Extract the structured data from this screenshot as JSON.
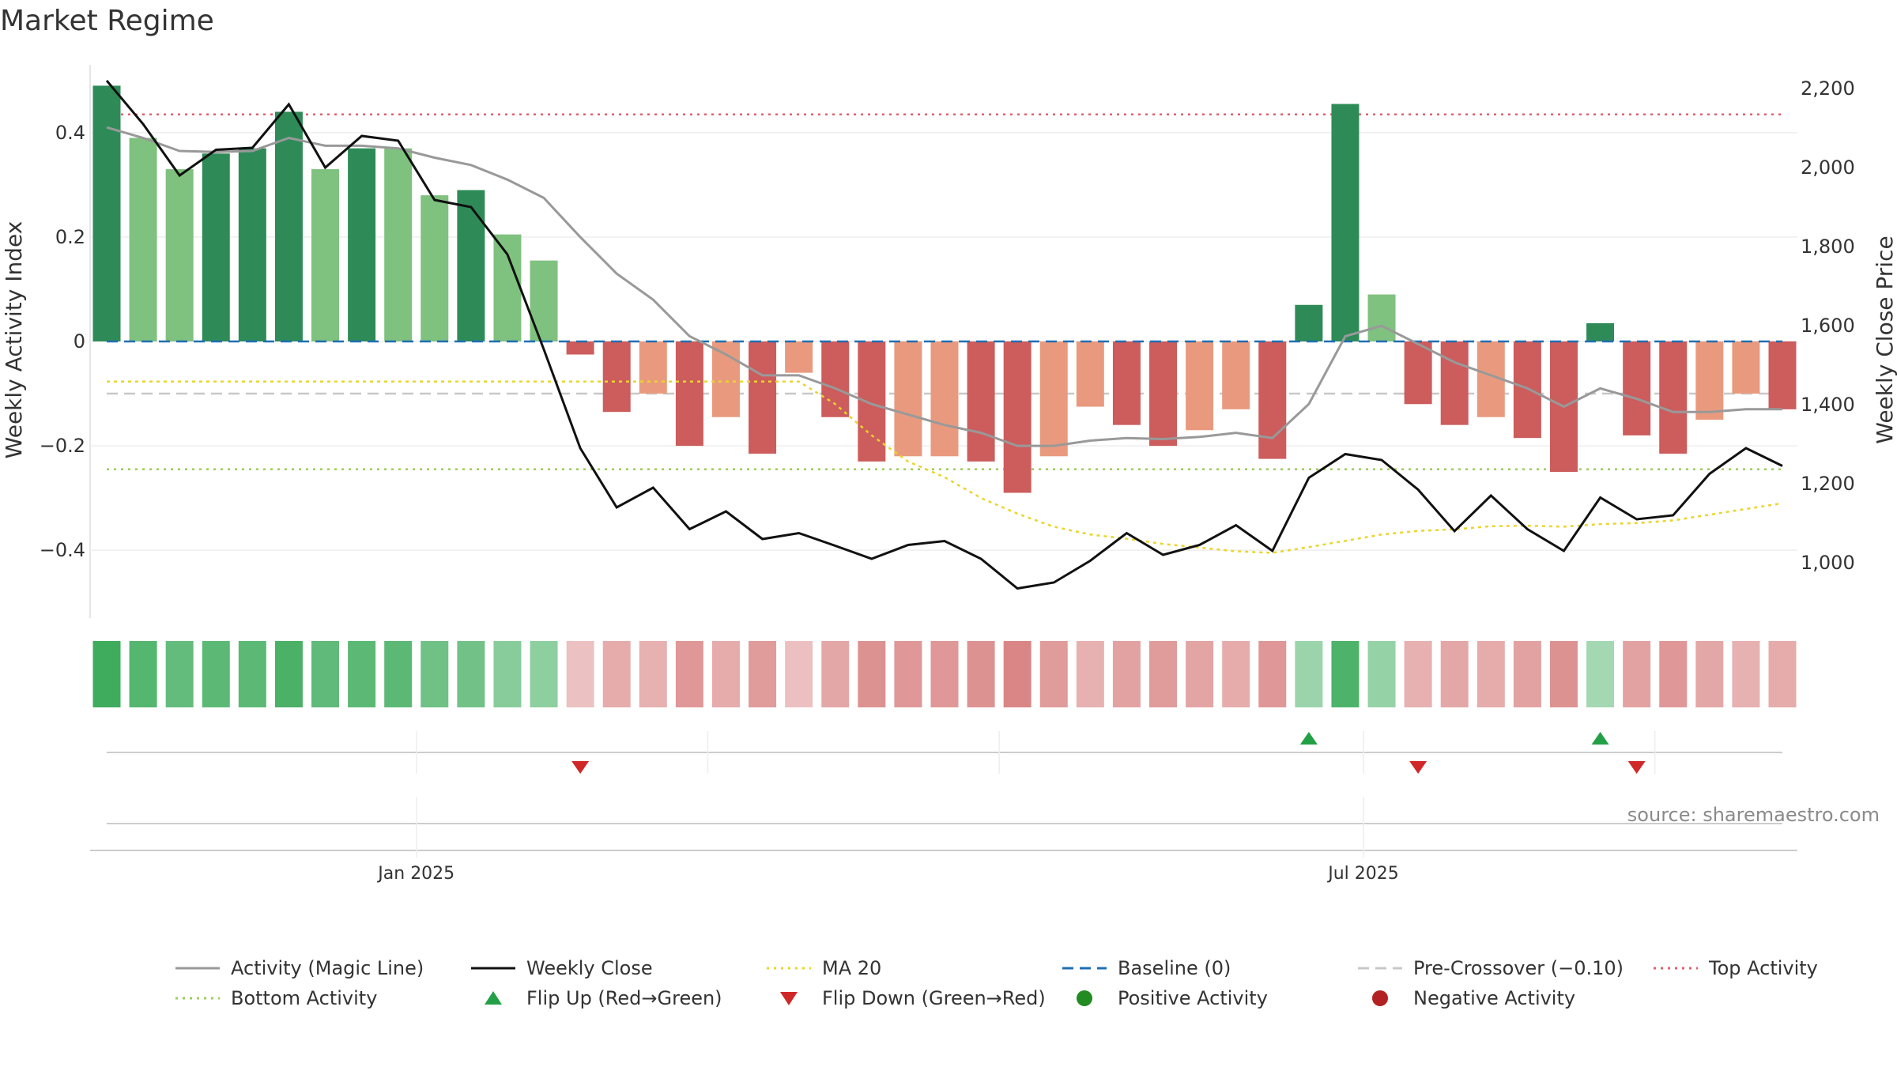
{
  "chart_data": {
    "type": "bar",
    "title": "Market Regime",
    "source": "source: sharemaestro.com",
    "ylabel": "Weekly Activity Index",
    "y2label": "Weekly Close Price",
    "ylim": [
      -0.53,
      0.53
    ],
    "y2lim": [
      860,
      2260
    ],
    "y_ticks": [
      0.4,
      0.2,
      0,
      -0.2,
      -0.4
    ],
    "y_tick_labels": [
      "0.4",
      "0.2",
      "0",
      "−0.2",
      "−0.4"
    ],
    "y2_ticks": [
      2200,
      2000,
      1800,
      1600,
      1400,
      1200,
      1000
    ],
    "y2_tick_labels": [
      "2,200",
      "2,000",
      "1,800",
      "1,600",
      "1,400",
      "1,200",
      "1,000"
    ],
    "x_ticks": [
      {
        "index": 8.5,
        "label": "Jan 2025"
      },
      {
        "index": 34.5,
        "label": "Jul 2025"
      }
    ],
    "weeks": 47,
    "activity": [
      0.49,
      0.39,
      0.33,
      0.36,
      0.37,
      0.44,
      0.33,
      0.37,
      0.37,
      0.28,
      0.29,
      0.205,
      0.155,
      -0.025,
      -0.135,
      -0.1,
      -0.2,
      -0.145,
      -0.215,
      -0.06,
      -0.145,
      -0.23,
      -0.22,
      -0.22,
      -0.23,
      -0.29,
      -0.22,
      -0.125,
      -0.16,
      -0.2,
      -0.17,
      -0.13,
      -0.225,
      0.07,
      0.455,
      0.09,
      -0.12,
      -0.16,
      -0.145,
      -0.185,
      -0.25,
      0.035,
      -0.18,
      -0.215,
      -0.15,
      -0.1,
      -0.13
    ],
    "activity_strong": [
      true,
      false,
      false,
      true,
      true,
      true,
      false,
      true,
      false,
      false,
      true,
      false,
      false,
      true,
      true,
      false,
      true,
      false,
      true,
      false,
      true,
      true,
      false,
      false,
      true,
      true,
      false,
      false,
      true,
      true,
      false,
      false,
      true,
      true,
      true,
      false,
      true,
      true,
      false,
      true,
      true,
      true,
      true,
      true,
      false,
      false,
      true
    ],
    "magic_line": [
      0.41,
      0.39,
      0.365,
      0.363,
      0.365,
      0.39,
      0.375,
      0.375,
      0.37,
      0.352,
      0.338,
      0.31,
      0.275,
      0.2,
      0.13,
      0.08,
      0.01,
      -0.025,
      -0.065,
      -0.065,
      -0.09,
      -0.12,
      -0.14,
      -0.16,
      -0.175,
      -0.2,
      -0.2,
      -0.19,
      -0.185,
      -0.187,
      -0.183,
      -0.175,
      -0.185,
      -0.12,
      0.01,
      0.03,
      -0.005,
      -0.04,
      -0.065,
      -0.09,
      -0.125,
      -0.09,
      -0.11,
      -0.135,
      -0.135,
      -0.13,
      -0.13
    ],
    "weekly_close": [
      2220,
      2110,
      1980,
      2045,
      2050,
      2160,
      2000,
      2080,
      2068,
      1918,
      1900,
      1780,
      1540,
      1290,
      1140,
      1190,
      1085,
      1130,
      1060,
      1075,
      1043,
      1010,
      1045,
      1055,
      1010,
      935,
      950,
      1005,
      1075,
      1020,
      1045,
      1095,
      1030,
      1215,
      1275,
      1260,
      1185,
      1080,
      1170,
      1085,
      1030,
      1165,
      1110,
      1120,
      1225,
      1290,
      1245
    ],
    "ma20": [
      -0.077,
      -0.077,
      -0.077,
      -0.077,
      -0.077,
      -0.077,
      -0.077,
      -0.077,
      -0.077,
      -0.077,
      -0.077,
      -0.077,
      -0.077,
      -0.077,
      -0.077,
      -0.077,
      -0.077,
      -0.077,
      -0.077,
      -0.077,
      -0.12,
      -0.18,
      -0.23,
      -0.26,
      -0.3,
      -0.33,
      -0.355,
      -0.37,
      -0.378,
      -0.388,
      -0.395,
      -0.402,
      -0.405,
      -0.394,
      -0.382,
      -0.37,
      -0.363,
      -0.36,
      -0.354,
      -0.353,
      -0.355,
      -0.35,
      -0.348,
      -0.343,
      -0.332,
      -0.321,
      -0.31
    ],
    "baseline": 0,
    "pre_crossover": -0.1,
    "top_activity": 0.435,
    "bottom_activity": -0.245,
    "regime_strength": [
      0.95,
      0.8,
      0.7,
      0.75,
      0.75,
      0.88,
      0.72,
      0.76,
      0.75,
      0.62,
      0.6,
      0.45,
      0.4,
      0.2,
      0.4,
      0.35,
      0.6,
      0.4,
      0.55,
      0.22,
      0.45,
      0.65,
      0.6,
      0.6,
      0.65,
      0.75,
      0.55,
      0.35,
      0.5,
      0.55,
      0.48,
      0.4,
      0.6,
      0.3,
      0.85,
      0.35,
      0.35,
      0.45,
      0.4,
      0.5,
      0.65,
      0.25,
      0.5,
      0.6,
      0.45,
      0.35,
      0.4
    ],
    "flip_up_weeks": [
      33,
      41
    ],
    "flip_down_weeks": [
      13,
      36,
      42
    ],
    "colors": {
      "green_strong": "#2e8b57",
      "green_light": "#7fc17f",
      "red_strong": "#cd5c5c",
      "red_light": "#e99a7e",
      "magic_line": "#999999",
      "weekly_close": "#111111",
      "ma20": "#e8d62a",
      "baseline": "#1f6fb2",
      "pre_crossover": "#c8c8c8",
      "top_activity": "#e06070",
      "bottom_activity": "#9ccc5a",
      "flip_up": "#22a045",
      "flip_down": "#d02828",
      "positive": "#228b22",
      "negative": "#b22222"
    },
    "legend": [
      {
        "label": "Activity (Magic Line)",
        "style": "line",
        "color": "#999999"
      },
      {
        "label": "Weekly Close",
        "style": "line",
        "color": "#111111"
      },
      {
        "label": "MA 20",
        "style": "dotted",
        "color": "#e8d62a"
      },
      {
        "label": "Baseline (0)",
        "style": "dashed",
        "color": "#1f6fb2"
      },
      {
        "label": "Pre-Crossover (−0.10)",
        "style": "dashed",
        "color": "#c8c8c8"
      },
      {
        "label": "Top Activity",
        "style": "dotted",
        "color": "#e06070"
      },
      {
        "label": "Bottom Activity",
        "style": "dotted",
        "color": "#9ccc5a"
      },
      {
        "label": "Flip Up (Red→Green)",
        "style": "triangle-up",
        "color": "#22a045"
      },
      {
        "label": "Flip Down (Green→Red)",
        "style": "triangle-down",
        "color": "#d02828"
      },
      {
        "label": "Positive Activity",
        "style": "circle",
        "color": "#228b22"
      },
      {
        "label": "Negative Activity",
        "style": "circle",
        "color": "#b22222"
      }
    ]
  }
}
